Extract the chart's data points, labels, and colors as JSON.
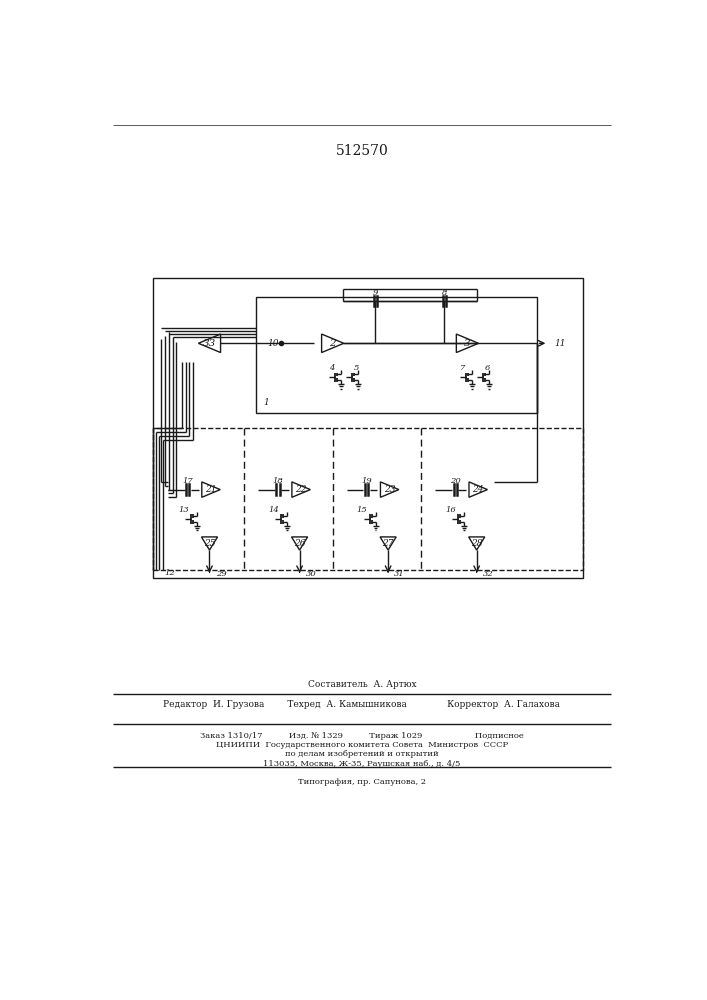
{
  "title": "512570",
  "bg_color": "#ffffff",
  "line_color": "#1a1a1a",
  "footer_lines": [
    "Составитель  А. Артюх",
    "Редактор  И. Грузова        Техред  А. Камышникова              Корректор  А. Галахова",
    "Заказ 1310/17          Изд. № 1329          Тираж 1029                    Подписное",
    "ЦНИИПИ  Государственного комитета Совета  Министров  СССР",
    "по делам изобретений и открытий",
    "113035, Москва, Ж-35, Раушская наб., д. 4/5",
    "Типография, пр. Сапунова, 2"
  ]
}
